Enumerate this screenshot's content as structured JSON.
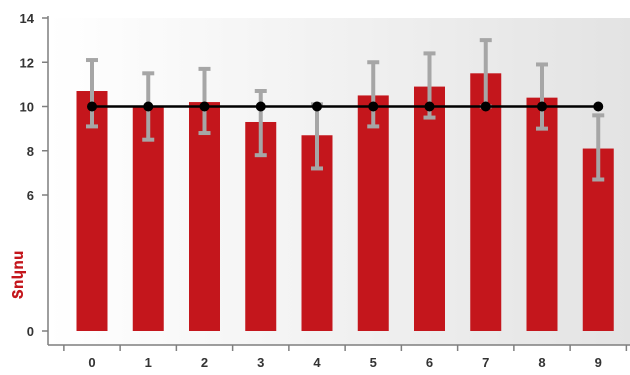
{
  "chart_data": {
    "type": "bar",
    "title": "",
    "xlabel": "",
    "ylabel": "Տոկոս",
    "categories": [
      "0",
      "1",
      "2",
      "3",
      "4",
      "5",
      "6",
      "7",
      "8",
      "9"
    ],
    "series": [
      {
        "type": "bar",
        "values": [
          10.7,
          10.0,
          10.2,
          9.3,
          8.7,
          10.5,
          10.9,
          11.5,
          10.4,
          8.1
        ],
        "error_low": [
          9.1,
          8.5,
          8.8,
          7.8,
          7.2,
          9.1,
          9.5,
          10.0,
          9.0,
          6.7
        ],
        "error_high": [
          12.1,
          11.5,
          11.7,
          10.7,
          10.1,
          12.0,
          12.4,
          13.0,
          11.9,
          9.6
        ]
      },
      {
        "type": "line",
        "values": [
          10,
          10,
          10,
          10,
          10,
          10,
          10,
          10,
          10,
          10
        ]
      }
    ],
    "y_ticks": [
      "0",
      "6",
      "8",
      "10",
      "12",
      "14"
    ],
    "y_tick_values": [
      0,
      6,
      8,
      10,
      12,
      14
    ],
    "ylim": [
      0,
      14
    ],
    "y_axis_break": true,
    "grid": false,
    "legend": "none"
  },
  "colors": {
    "bar": "#c4161c",
    "error_bar": "#a6a6a6",
    "line": "#000000",
    "axis": "#7f7f7f",
    "ylabel": "#c4161c"
  }
}
